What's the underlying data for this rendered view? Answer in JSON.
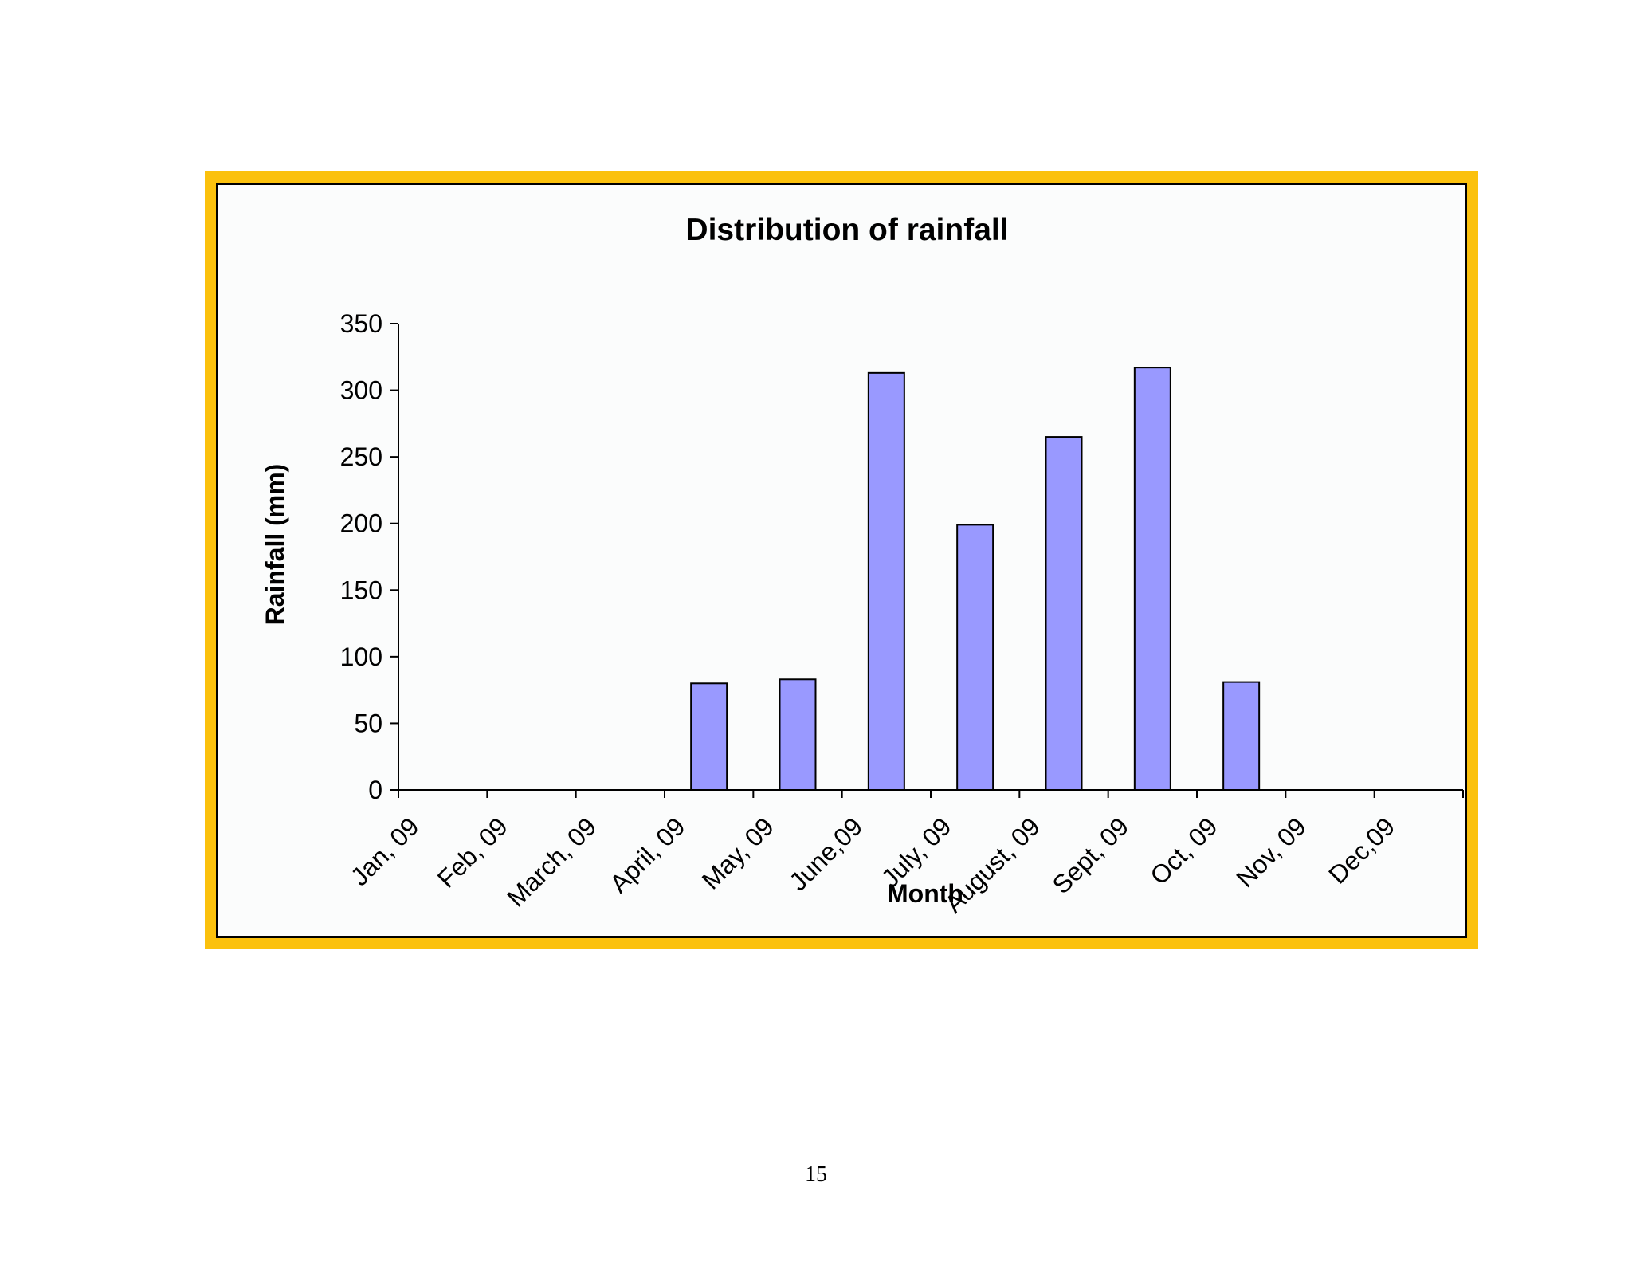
{
  "chart_data": {
    "type": "bar",
    "title": "Distribution of rainfall",
    "xlabel": "Month",
    "ylabel": "Rainfall (mm)",
    "categories": [
      "Jan, 09",
      "Feb, 09",
      "March, 09",
      "April, 09",
      "May, 09",
      "June,09",
      "July, 09",
      "August, 09",
      "Sept, 09",
      "Oct, 09",
      "Nov, 09",
      "Dec,09"
    ],
    "values": [
      0,
      0,
      0,
      80,
      83,
      313,
      199,
      265,
      317,
      81,
      0,
      0
    ],
    "ylim": [
      0,
      350
    ],
    "yticks": [
      0,
      50,
      100,
      150,
      200,
      250,
      300,
      350
    ],
    "grid": false,
    "legend": "none",
    "bar_color": "#9999ff",
    "frame_color": "#fbc10d"
  },
  "page": {
    "number": "15"
  }
}
